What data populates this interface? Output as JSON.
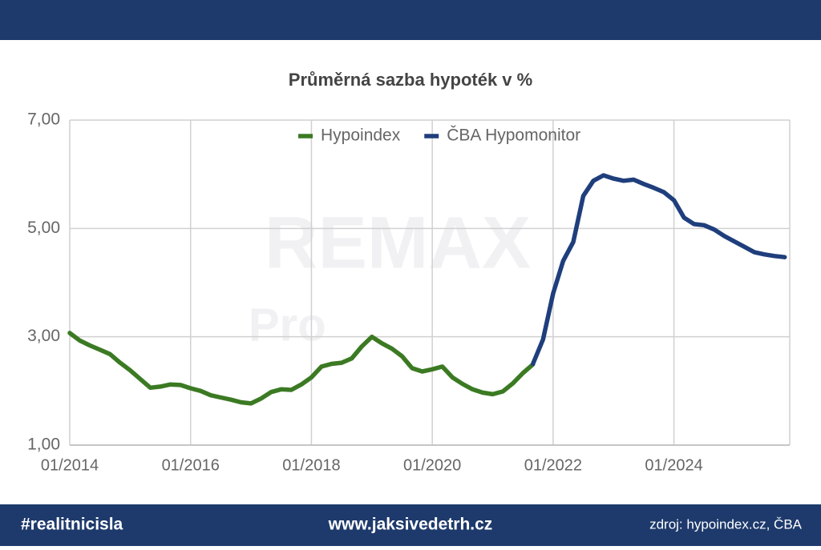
{
  "chart_data": {
    "type": "line",
    "title": "Průměrná sazba hypoték v %",
    "x": [
      "01/2014",
      "03/2014",
      "05/2014",
      "07/2014",
      "09/2014",
      "11/2014",
      "01/2015",
      "03/2015",
      "05/2015",
      "07/2015",
      "09/2015",
      "11/2015",
      "01/2016",
      "03/2016",
      "05/2016",
      "07/2016",
      "09/2016",
      "11/2016",
      "01/2017",
      "03/2017",
      "05/2017",
      "07/2017",
      "09/2017",
      "11/2017",
      "01/2018",
      "03/2018",
      "05/2018",
      "07/2018",
      "09/2018",
      "11/2018",
      "01/2019",
      "03/2019",
      "05/2019",
      "07/2019",
      "09/2019",
      "11/2019",
      "01/2020",
      "03/2020",
      "05/2020",
      "07/2020",
      "09/2020",
      "11/2020",
      "01/2021",
      "03/2021",
      "05/2021",
      "07/2021",
      "09/2021",
      "11/2021",
      "01/2022",
      "03/2022",
      "05/2022",
      "07/2022",
      "09/2022",
      "11/2022",
      "01/2023",
      "03/2023",
      "05/2023",
      "07/2023",
      "09/2023",
      "11/2023",
      "01/2024",
      "03/2024",
      "05/2024",
      "07/2024",
      "09/2024",
      "11/2024",
      "01/2025",
      "03/2025",
      "05/2025",
      "07/2025",
      "09/2025",
      "11/2025"
    ],
    "series": [
      {
        "name": "Hypoindex",
        "color": "#3b7a23",
        "values": [
          3.07,
          2.93,
          2.84,
          2.76,
          2.68,
          2.52,
          2.38,
          2.22,
          2.06,
          2.08,
          2.12,
          2.11,
          2.05,
          2.0,
          1.92,
          1.88,
          1.84,
          1.79,
          1.77,
          1.86,
          1.98,
          2.03,
          2.02,
          2.12,
          2.25,
          2.45,
          2.5,
          2.52,
          2.6,
          2.82,
          3.0,
          2.88,
          2.78,
          2.64,
          2.42,
          2.36,
          2.4,
          2.45,
          2.25,
          2.13,
          2.03,
          1.97,
          1.94,
          1.99,
          2.14,
          2.33,
          2.49,
          null,
          null,
          null,
          null,
          null,
          null,
          null,
          null,
          null,
          null,
          null,
          null,
          null,
          null,
          null,
          null,
          null,
          null,
          null,
          null,
          null,
          null,
          null,
          null,
          null
        ]
      },
      {
        "name": "ČBA Hypomonitor",
        "color": "#1f3e7c",
        "values": [
          null,
          null,
          null,
          null,
          null,
          null,
          null,
          null,
          null,
          null,
          null,
          null,
          null,
          null,
          null,
          null,
          null,
          null,
          null,
          null,
          null,
          null,
          null,
          null,
          null,
          null,
          null,
          null,
          null,
          null,
          null,
          null,
          null,
          null,
          null,
          null,
          null,
          null,
          null,
          null,
          null,
          null,
          null,
          null,
          null,
          null,
          2.5,
          2.95,
          3.8,
          4.4,
          4.75,
          5.6,
          5.88,
          5.98,
          5.92,
          5.88,
          5.9,
          5.82,
          5.75,
          5.67,
          5.52,
          5.2,
          5.08,
          5.06,
          4.98,
          4.86,
          4.76,
          4.66,
          4.56,
          4.52,
          4.49,
          4.47
        ]
      }
    ],
    "xlim": [
      "01/2014",
      "12/2025"
    ],
    "xticks": [
      "01/2014",
      "01/2016",
      "01/2018",
      "01/2020",
      "01/2022",
      "01/2024"
    ],
    "ylim": [
      1,
      7
    ],
    "yticks": [
      {
        "value": 1,
        "label": "1,00"
      },
      {
        "value": 3,
        "label": "3,00"
      },
      {
        "value": 5,
        "label": "5,00"
      },
      {
        "value": 7,
        "label": "7,00"
      }
    ],
    "grid": true,
    "legend": "top",
    "watermark": {
      "brand": "REMAX",
      "sub": "Pro"
    }
  },
  "footer": {
    "hashtag": "#realitnicisla",
    "website": "www.jaksivedetrh.cz",
    "source": "zdroj: hypoindex.cz, ČBA"
  }
}
